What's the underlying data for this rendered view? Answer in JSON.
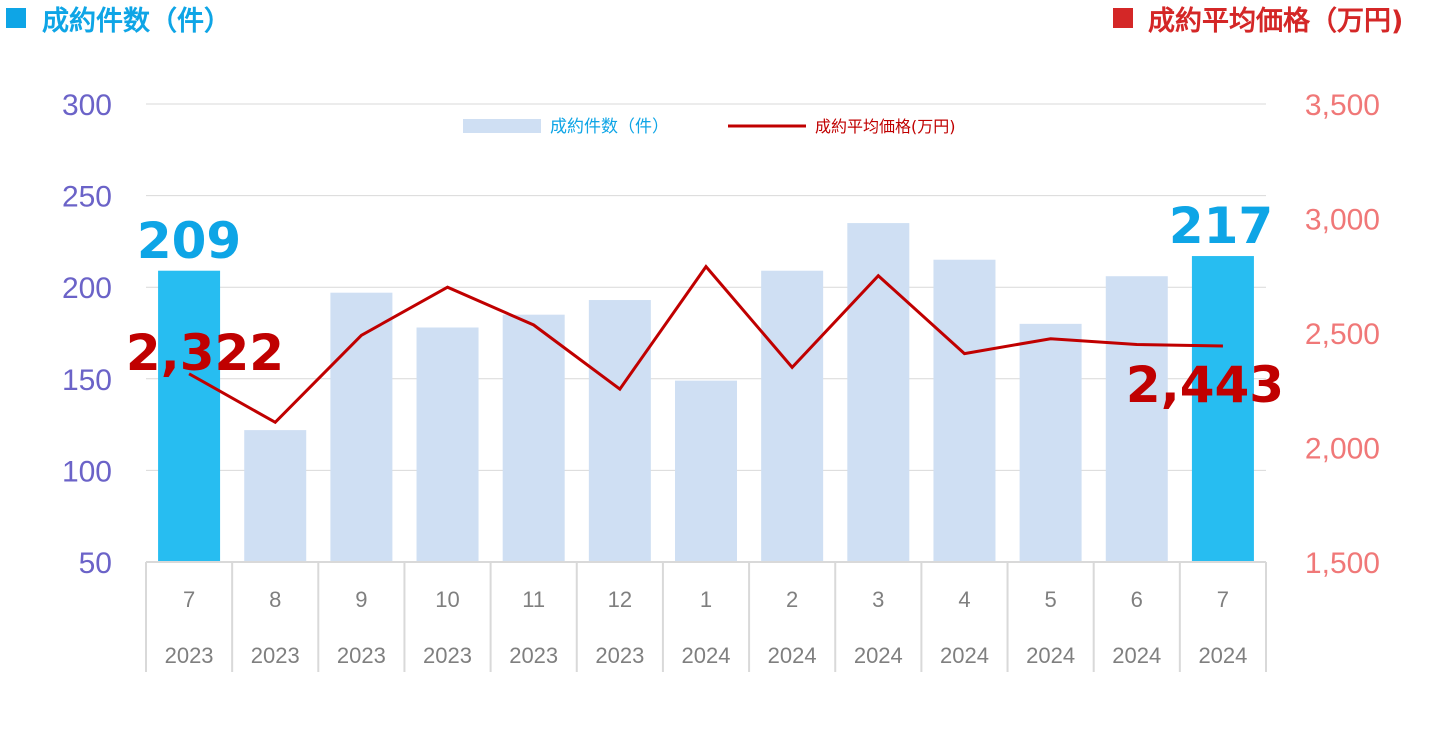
{
  "header": {
    "left_title": "成約件数（件）",
    "right_title": "成約平均価格（万円)"
  },
  "legend": {
    "bars_label": "成約件数（件）",
    "line_label": "成約平均価格(万円)"
  },
  "colors": {
    "bar_regular": "#cfdff3",
    "bar_highlight": "#27bdf1",
    "line": "#c00000",
    "left_axis_text": "#6b63c8",
    "right_axis_text": "#f07878",
    "left_header": "#0ea5e6",
    "right_header": "#d42727",
    "label_highlight_count": "#0ea5e6",
    "label_highlight_price": "#c00000",
    "grid": "#d9d9d9",
    "category_text": "#7f7f7f"
  },
  "chart_data": {
    "type": "bar",
    "categories": [
      {
        "month": "7",
        "year": "2023"
      },
      {
        "month": "8",
        "year": "2023"
      },
      {
        "month": "9",
        "year": "2023"
      },
      {
        "month": "10",
        "year": "2023"
      },
      {
        "month": "11",
        "year": "2023"
      },
      {
        "month": "12",
        "year": "2023"
      },
      {
        "month": "1",
        "year": "2024"
      },
      {
        "month": "2",
        "year": "2024"
      },
      {
        "month": "3",
        "year": "2024"
      },
      {
        "month": "4",
        "year": "2024"
      },
      {
        "month": "5",
        "year": "2024"
      },
      {
        "month": "6",
        "year": "2024"
      },
      {
        "month": "7",
        "year": "2024"
      }
    ],
    "series": [
      {
        "name": "成約件数（件）",
        "axis": "left",
        "kind": "bar",
        "values": [
          209,
          122,
          197,
          178,
          185,
          193,
          149,
          209,
          235,
          215,
          180,
          206,
          217
        ],
        "highlight_indices": [
          0,
          12
        ]
      },
      {
        "name": "成約平均価格(万円)",
        "axis": "right",
        "kind": "line",
        "values": [
          2322,
          2110,
          2490,
          2700,
          2535,
          2255,
          2790,
          2350,
          2750,
          2410,
          2475,
          2450,
          2443
        ]
      }
    ],
    "left_axis": {
      "ylim": [
        50,
        300
      ],
      "ticks": [
        "50",
        "100",
        "150",
        "200",
        "250",
        "300"
      ]
    },
    "right_axis": {
      "ylim": [
        1500,
        3500
      ],
      "ticks": [
        "1,500",
        "2,000",
        "2,500",
        "3,000",
        "3,500"
      ]
    },
    "annotations": {
      "count_first": "209",
      "count_last": "217",
      "price_first": "2,322",
      "price_last": "2,443"
    },
    "grid": true,
    "legend_position": "top-center"
  }
}
